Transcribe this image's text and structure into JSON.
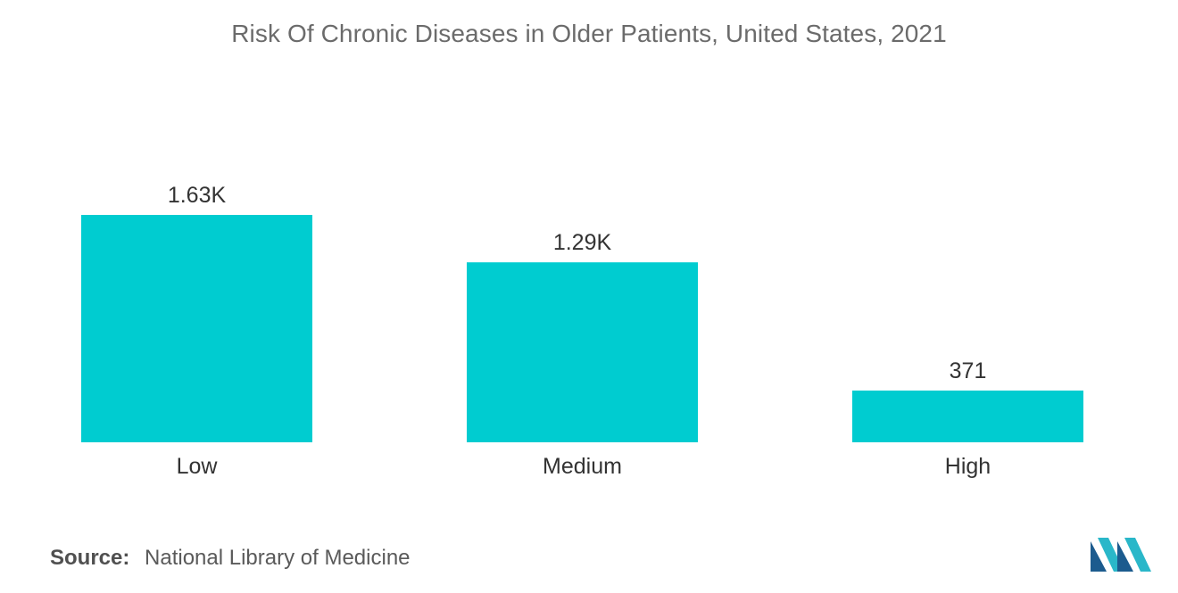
{
  "chart_data": {
    "type": "bar",
    "title": "Risk Of Chronic Diseases in Older Patients, United States, 2021",
    "categories": [
      "Low",
      "Medium",
      "High"
    ],
    "values": [
      1630,
      1290,
      371
    ],
    "value_labels": [
      "1.63K",
      "1.29K",
      "371"
    ],
    "xlabel": "",
    "ylabel": "",
    "ylim": [
      0,
      1630
    ],
    "grid": false,
    "legend": "none",
    "bar_color": "#00CCD0"
  },
  "source": {
    "label": "Source:",
    "text": "National Library of Medicine"
  },
  "logo": {
    "icon": "mordor-intelligence-logo-icon",
    "colors": [
      "#1C5B8E",
      "#2AB7C9"
    ]
  }
}
